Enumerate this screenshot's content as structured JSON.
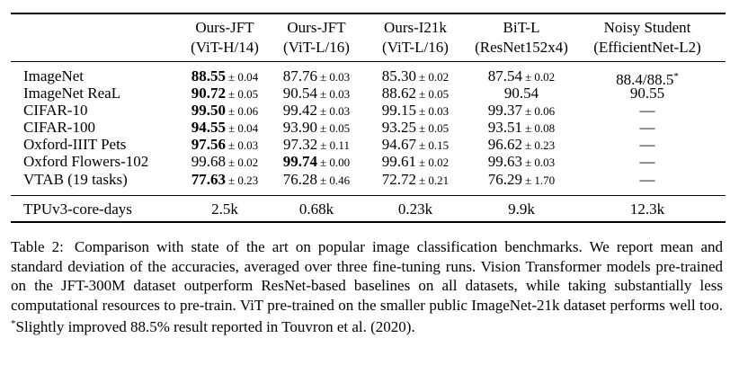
{
  "table": {
    "columns": [
      {
        "line1": "Ours-JFT",
        "line2": "(ViT-H/14)"
      },
      {
        "line1": "Ours-JFT",
        "line2": "(ViT-L/16)"
      },
      {
        "line1": "Ours-I21k",
        "line2": "(ViT-L/16)"
      },
      {
        "line1": "BiT-L",
        "line2": "(ResNet152x4)"
      },
      {
        "line1": "Noisy Student",
        "line2": "(EfficientNet-L2)"
      }
    ],
    "rows": [
      {
        "label": "ImageNet",
        "cells": [
          {
            "v": "88.55",
            "pm": "± 0.04",
            "bold": true
          },
          {
            "v": "87.76",
            "pm": "± 0.03"
          },
          {
            "v": "85.30",
            "pm": "± 0.02"
          },
          {
            "v": "87.54",
            "pm": "± 0.02"
          },
          {
            "v": "88.4/88.5",
            "sup": "*"
          }
        ]
      },
      {
        "label": "ImageNet ReaL",
        "cells": [
          {
            "v": "90.72",
            "pm": "± 0.05",
            "bold": true
          },
          {
            "v": "90.54",
            "pm": "± 0.03"
          },
          {
            "v": "88.62",
            "pm": "± 0.05"
          },
          {
            "v": "90.54"
          },
          {
            "v": "90.55"
          }
        ]
      },
      {
        "label": "CIFAR-10",
        "cells": [
          {
            "v": "99.50",
            "pm": "± 0.06",
            "bold": true
          },
          {
            "v": "99.42",
            "pm": "± 0.03"
          },
          {
            "v": "99.15",
            "pm": "± 0.03"
          },
          {
            "v": "99.37",
            "pm": "± 0.06"
          },
          {
            "v": "—"
          }
        ]
      },
      {
        "label": "CIFAR-100",
        "cells": [
          {
            "v": "94.55",
            "pm": "± 0.04",
            "bold": true
          },
          {
            "v": "93.90",
            "pm": "± 0.05"
          },
          {
            "v": "93.25",
            "pm": "± 0.05"
          },
          {
            "v": "93.51",
            "pm": "± 0.08"
          },
          {
            "v": "—"
          }
        ]
      },
      {
        "label": "Oxford-IIIT Pets",
        "cells": [
          {
            "v": "97.56",
            "pm": "± 0.03",
            "bold": true
          },
          {
            "v": "97.32",
            "pm": "± 0.11"
          },
          {
            "v": "94.67",
            "pm": "± 0.15"
          },
          {
            "v": "96.62",
            "pm": "± 0.23"
          },
          {
            "v": "—"
          }
        ]
      },
      {
        "label": "Oxford Flowers-102",
        "cells": [
          {
            "v": "99.68",
            "pm": "± 0.02"
          },
          {
            "v": "99.74",
            "pm": "± 0.00",
            "bold": true
          },
          {
            "v": "99.61",
            "pm": "± 0.02"
          },
          {
            "v": "99.63",
            "pm": "± 0.03"
          },
          {
            "v": "—"
          }
        ]
      },
      {
        "label": "VTAB (19 tasks)",
        "cells": [
          {
            "v": "77.63",
            "pm": "± 0.23",
            "bold": true
          },
          {
            "v": "76.28",
            "pm": "± 0.46"
          },
          {
            "v": "72.72",
            "pm": "± 0.21"
          },
          {
            "v": "76.29",
            "pm": "± 1.70"
          },
          {
            "v": "—"
          }
        ]
      }
    ],
    "cost_row": {
      "label": "TPUv3-core-days",
      "cells": [
        "2.5k",
        "0.68k",
        "0.23k",
        "9.9k",
        "12.3k"
      ]
    }
  },
  "caption": {
    "label": "Table 2:",
    "text": "Comparison with state of the art on popular image classification benchmarks. We report mean and standard deviation of the accuracies, averaged over three fine-tuning runs. Vision Transformer models pre-trained on the JFT-300M dataset outperform ResNet-based baselines on all datasets, while taking substantially less computational resources to pre-train. ViT pre-trained on the smaller public ImageNet-21k dataset performs well too. ",
    "footnote_mark": "*",
    "footnote": "Slightly improved 88.5% result reported in Touvron et al. (2020)."
  }
}
